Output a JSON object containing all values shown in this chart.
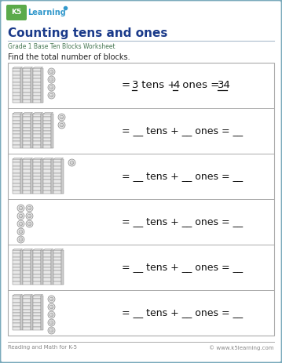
{
  "title": "Counting tens and ones",
  "subtitle": "Grade 1 Base Ten Blocks Worksheet",
  "instruction": "Find the total number of blocks.",
  "bg_color": "#f0f4f8",
  "page_bg": "#ffffff",
  "border_color": "#7aaabb",
  "title_color": "#1a3a8a",
  "subtitle_color": "#4a7a55",
  "instruction_color": "#222222",
  "rows": [
    {
      "tens": 3,
      "ones": 4,
      "show_answer": true
    },
    {
      "tens": 4,
      "ones": 2,
      "show_answer": false
    },
    {
      "tens": 5,
      "ones": 1,
      "show_answer": false
    },
    {
      "tens": 0,
      "ones": 8,
      "show_answer": false
    },
    {
      "tens": 5,
      "ones": 0,
      "show_answer": false
    },
    {
      "tens": 3,
      "ones": 5,
      "show_answer": false
    }
  ],
  "footer_left": "Reading and Math for K-5",
  "footer_right": "© www.k5learning.com",
  "row_border": "#aaaaaa",
  "block_fill": "#e8e8e8",
  "block_edge": "#888888",
  "block_inner": "#cccccc"
}
